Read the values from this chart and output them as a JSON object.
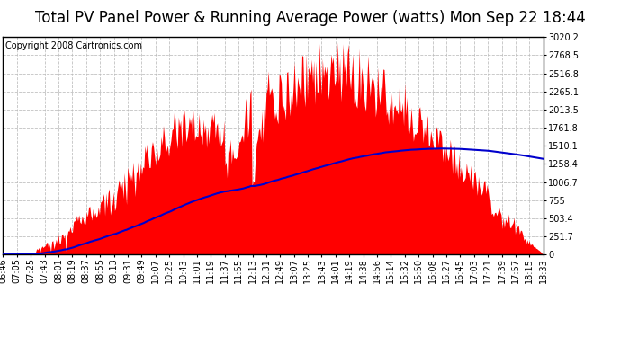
{
  "title": "Total PV Panel Power & Running Average Power (watts) Mon Sep 22 18:44",
  "copyright": "Copyright 2008 Cartronics.com",
  "background_color": "#ffffff",
  "plot_background": "#ffffff",
  "grid_color": "#bbbbbb",
  "bar_color": "#ff0000",
  "line_color": "#0000cc",
  "yticks": [
    0.0,
    251.7,
    503.4,
    755.0,
    1006.7,
    1258.4,
    1510.1,
    1761.8,
    2013.5,
    2265.1,
    2516.8,
    2768.5,
    3020.2
  ],
  "ylim": [
    0,
    3020.2
  ],
  "x_labels": [
    "06:46",
    "07:05",
    "07:25",
    "07:43",
    "08:01",
    "08:19",
    "08:37",
    "08:55",
    "09:13",
    "09:31",
    "09:49",
    "10:07",
    "10:25",
    "10:43",
    "11:01",
    "11:19",
    "11:37",
    "11:55",
    "12:13",
    "12:31",
    "12:49",
    "13:07",
    "13:25",
    "13:43",
    "14:01",
    "14:19",
    "14:38",
    "14:56",
    "15:14",
    "15:32",
    "15:50",
    "16:08",
    "16:27",
    "16:45",
    "17:03",
    "17:21",
    "17:39",
    "17:57",
    "18:15",
    "18:33"
  ],
  "title_fontsize": 12,
  "copyright_fontsize": 7,
  "tick_fontsize": 7,
  "figsize": [
    6.9,
    3.75
  ],
  "dpi": 100
}
